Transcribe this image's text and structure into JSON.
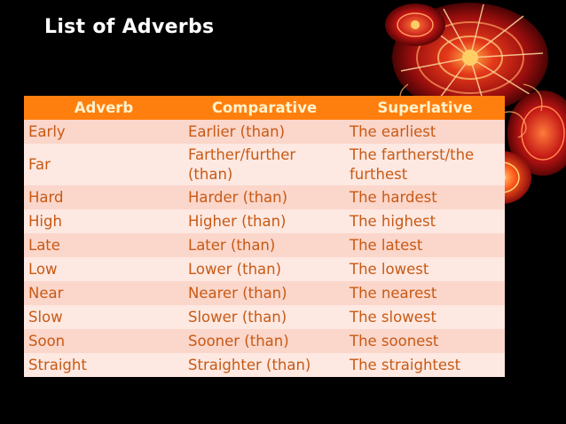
{
  "slide": {
    "title": "List of Adverbs"
  },
  "table": {
    "headers": [
      "Adverb",
      "Comparative",
      "Superlative"
    ],
    "rows": [
      {
        "adverb": "Early",
        "comparative": "Earlier (than)",
        "superlative": "The earliest"
      },
      {
        "adverb": "Far",
        "comparative": "Farther/further (than)",
        "superlative": "The fartherst/the furthest"
      },
      {
        "adverb": "Hard",
        "comparative": "Harder (than)",
        "superlative": "The hardest"
      },
      {
        "adverb": "High",
        "comparative": "Higher (than)",
        "superlative": "The highest"
      },
      {
        "adverb": "Late",
        "comparative": "Later (than)",
        "superlative": "The latest"
      },
      {
        "adverb": "Low",
        "comparative": "Lower (than)",
        "superlative": "The lowest"
      },
      {
        "adverb": "Near",
        "comparative": "Nearer (than)",
        "superlative": "The nearest"
      },
      {
        "adverb": "Slow",
        "comparative": "Slower (than)",
        "superlative": "The slowest"
      },
      {
        "adverb": "Soon",
        "comparative": "Sooner (than)",
        "superlative": "The soonest"
      },
      {
        "adverb": "Straight",
        "comparative": "Straighter (than)",
        "superlative": "The straightest"
      }
    ]
  },
  "colors": {
    "background": "#000000",
    "header_fill": "#ff7f0e",
    "header_text": "#fff2cc",
    "row_odd": "#fbd6cb",
    "row_even": "#fde8e2",
    "cell_text": "#c85a14"
  }
}
